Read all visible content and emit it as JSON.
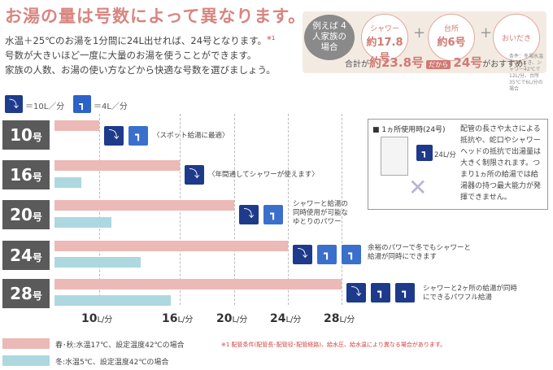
{
  "title": "お湯の量は号数によって異なります。",
  "intro": {
    "line1": "水温＋25℃のお湯を1分間に24L出せれば、24号となります。",
    "line1_sup": "※1",
    "line2": "号数が大きいほど一度に大量のお湯を使うことができます。",
    "line3": "家族の人数、お湯の使い方などから快適な号数を選びましょう。"
  },
  "example": {
    "label": "例えば 4人家族の 場合",
    "shower_label": "シャワー",
    "shower_value": "約17.8号",
    "kitchen_label": "台所",
    "kitchen_value": "約6号",
    "oidaki_label": "おいだき",
    "conditions": "条件：冬場水温5℃のとき、シャワー42℃で12L/分、台所35℃で6L/分の場合",
    "total_prefix": "合計が",
    "total_value": "約23.8号",
    "tag": "だから",
    "result_value": "24号",
    "result_suffix": "がおすすめ!"
  },
  "legend_icons": {
    "shower_text": "＝10L／分",
    "faucet_text": "＝4L／分"
  },
  "rows": [
    {
      "badge_num": "10",
      "badge_unit": "号",
      "pink": 10,
      "blue": 5.5,
      "caption": "〈スポット給湯に最適〉"
    },
    {
      "badge_num": "16",
      "badge_unit": "号",
      "pink": 16,
      "blue": 8.7,
      "caption": "〈年間通してシャワーが使えます〉"
    },
    {
      "badge_num": "20",
      "badge_unit": "号",
      "pink": 20,
      "blue": 10.9,
      "caption": "シャワーと給湯の同時使用が可能なゆとりのパワー"
    },
    {
      "badge_num": "24",
      "badge_unit": "号",
      "pink": 24,
      "blue": 13.1,
      "caption": "余裕のパワーで冬でもシャワーと給湯が同時にできます"
    },
    {
      "badge_num": "28",
      "badge_unit": "号",
      "pink": 28,
      "blue": 15.3,
      "caption": "シャワーと2ヶ所の給湯が同時にできるパワフル給湯"
    }
  ],
  "axis": [
    {
      "num": "10",
      "unit": "L/分"
    },
    {
      "num": "16",
      "unit": "L/分"
    },
    {
      "num": "20",
      "unit": "L/分"
    },
    {
      "num": "24",
      "unit": "L/分"
    },
    {
      "num": "28",
      "unit": "L/分"
    }
  ],
  "info_box": {
    "title": "■ 1ヵ所使用時(24号)",
    "flow": "24L/分",
    "text": "配管の長さや太さによる抵抗や、蛇口やシャワーヘッドの抵抗で出湯量は大きく制限されます。つまり1ヵ所の給湯では給湯器の持つ最大能力が発揮できません。"
  },
  "legend": {
    "pink": "春･秋:水温17℃、設定温度42℃の場合",
    "blue": "冬:水温5℃、設定温度42℃の場合"
  },
  "note": "※1 配管条件(配管長･配管径･配管経路)、給水圧、給水温により異なる場合があります。",
  "colors": {
    "pink": "#ebb9b6",
    "blue": "#add8e0",
    "icon": "#1e3a8a",
    "badge": "#5a5a5a",
    "title": "#d8857f"
  }
}
